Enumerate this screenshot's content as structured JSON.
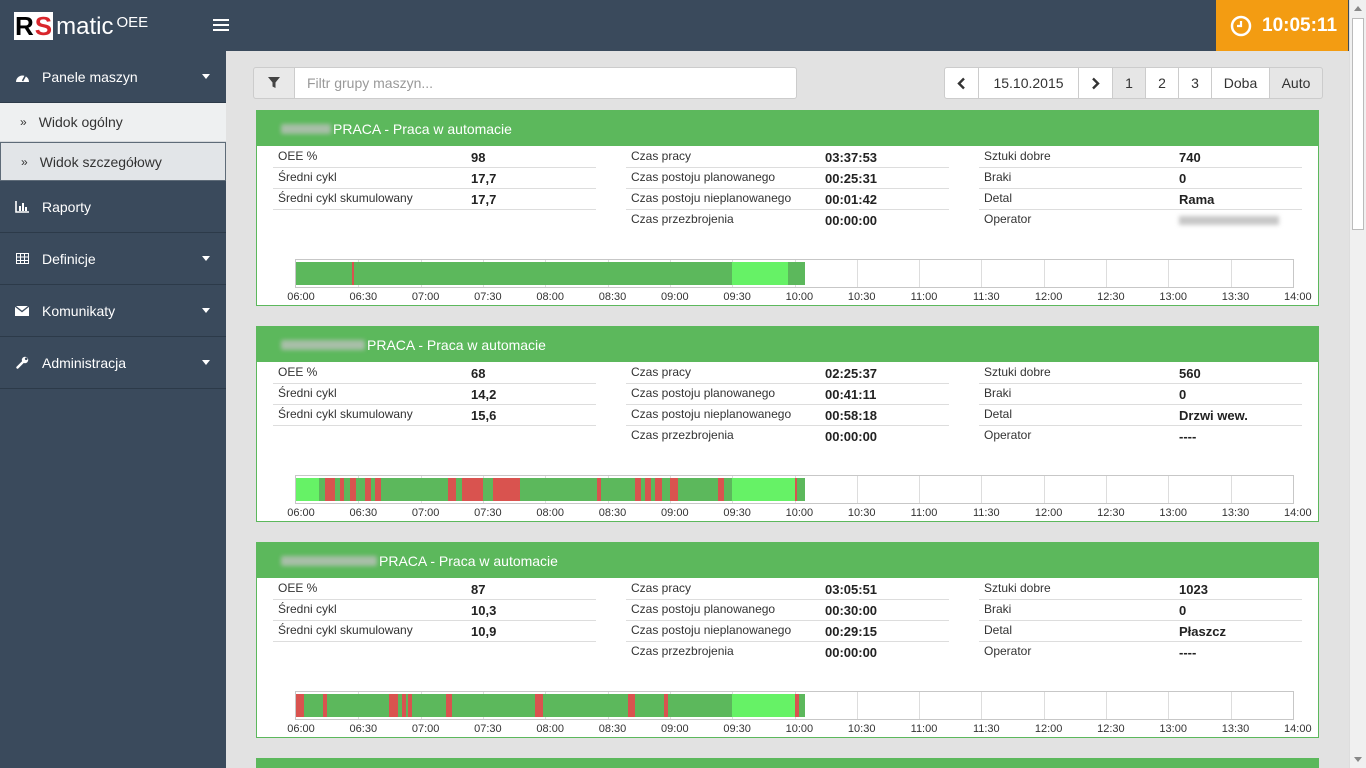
{
  "app": {
    "logo_r": "R",
    "logo_s": "S",
    "logo_rest": "matic",
    "logo_suffix": "OEE",
    "clock": "10:05:11"
  },
  "sidebar": {
    "items": [
      {
        "label": "Panele maszyn",
        "icon": "dashboard-icon",
        "expanded": true,
        "children": [
          {
            "label": "Widok ogólny",
            "active": false
          },
          {
            "label": "Widok szczegółowy",
            "active": true
          }
        ]
      },
      {
        "label": "Raporty",
        "icon": "bar-chart-icon"
      },
      {
        "label": "Definicje",
        "icon": "table-icon"
      },
      {
        "label": "Komunikaty",
        "icon": "envelope-icon"
      },
      {
        "label": "Administracja",
        "icon": "wrench-icon"
      }
    ]
  },
  "toolbar": {
    "filter_placeholder": "Filtr grupy maszyn...",
    "date": "15.10.2015",
    "pages": [
      "1",
      "2",
      "3"
    ],
    "active_page": "1",
    "doba": "Doba",
    "auto": "Auto"
  },
  "labels": {
    "oee": "OEE %",
    "avg_cycle": "Średni cykl",
    "avg_cycle_cum": "Średni cykl skumulowany",
    "work_time": "Czas pracy",
    "planned_stop": "Czas postoju planowanego",
    "unplanned_stop": "Czas postoju nieplanowanego",
    "changeover": "Czas przezbrojenia",
    "good_parts": "Sztuki dobre",
    "rejects": "Braki",
    "detail": "Detal",
    "operator": "Operator"
  },
  "time_ticks": [
    "06:00",
    "06:30",
    "07:00",
    "07:30",
    "08:00",
    "08:30",
    "09:00",
    "09:30",
    "10:00",
    "10:30",
    "11:00",
    "11:30",
    "12:00",
    "12:30",
    "13:00",
    "13:30",
    "14:00"
  ],
  "colors": {
    "run": "#5cb85c",
    "stop": "#d9534f",
    "planned": "#66f266",
    "header": "#5cb85c",
    "clock": "#f39c12"
  },
  "machines": [
    {
      "status": "PRACA - Praca w automacie",
      "oee": "98",
      "avg_cycle": "17,7",
      "avg_cycle_cum": "17,7",
      "work_time": "03:37:53",
      "planned_stop": "00:25:31",
      "unplanned_stop": "00:01:42",
      "changeover": "00:00:00",
      "good_parts": "740",
      "rejects": "0",
      "detail": "Rama",
      "operator": "",
      "timeline": [
        {
          "from": "06:00",
          "to": "06:27",
          "state": "run"
        },
        {
          "from": "06:27",
          "to": "06:28",
          "state": "stop"
        },
        {
          "from": "06:28",
          "to": "09:30",
          "state": "run"
        },
        {
          "from": "09:30",
          "to": "09:57",
          "state": "planned"
        },
        {
          "from": "09:57",
          "to": "10:05",
          "state": "run"
        }
      ]
    },
    {
      "status": "PRACA - Praca w automacie",
      "oee": "68",
      "avg_cycle": "14,2",
      "avg_cycle_cum": "15,6",
      "work_time": "02:25:37",
      "planned_stop": "00:41:11",
      "unplanned_stop": "00:58:18",
      "changeover": "00:00:00",
      "good_parts": "560",
      "rejects": "0",
      "detail": "Drzwi wew.",
      "operator": "----",
      "timeline": [
        {
          "from": "06:00",
          "to": "06:11",
          "state": "planned"
        },
        {
          "from": "06:11",
          "to": "06:14",
          "state": "run"
        },
        {
          "from": "06:14",
          "to": "06:19",
          "state": "stop"
        },
        {
          "from": "06:19",
          "to": "06:21",
          "state": "run"
        },
        {
          "from": "06:21",
          "to": "06:23",
          "state": "stop"
        },
        {
          "from": "06:23",
          "to": "06:26",
          "state": "run"
        },
        {
          "from": "06:26",
          "to": "06:29",
          "state": "stop"
        },
        {
          "from": "06:29",
          "to": "06:33",
          "state": "run"
        },
        {
          "from": "06:33",
          "to": "06:36",
          "state": "stop"
        },
        {
          "from": "06:36",
          "to": "06:38",
          "state": "run"
        },
        {
          "from": "06:38",
          "to": "06:41",
          "state": "stop"
        },
        {
          "from": "06:41",
          "to": "07:13",
          "state": "run"
        },
        {
          "from": "07:13",
          "to": "07:17",
          "state": "stop"
        },
        {
          "from": "07:17",
          "to": "07:20",
          "state": "run"
        },
        {
          "from": "07:20",
          "to": "07:30",
          "state": "stop"
        },
        {
          "from": "07:30",
          "to": "07:35",
          "state": "run"
        },
        {
          "from": "07:35",
          "to": "07:48",
          "state": "stop"
        },
        {
          "from": "07:48",
          "to": "08:25",
          "state": "run"
        },
        {
          "from": "08:25",
          "to": "08:27",
          "state": "stop"
        },
        {
          "from": "08:27",
          "to": "08:43",
          "state": "run"
        },
        {
          "from": "08:43",
          "to": "08:46",
          "state": "stop"
        },
        {
          "from": "08:46",
          "to": "08:48",
          "state": "run"
        },
        {
          "from": "08:48",
          "to": "08:51",
          "state": "stop"
        },
        {
          "from": "08:51",
          "to": "08:53",
          "state": "run"
        },
        {
          "from": "08:53",
          "to": "08:56",
          "state": "stop"
        },
        {
          "from": "08:56",
          "to": "09:00",
          "state": "run"
        },
        {
          "from": "09:00",
          "to": "09:04",
          "state": "stop"
        },
        {
          "from": "09:04",
          "to": "09:23",
          "state": "run"
        },
        {
          "from": "09:23",
          "to": "09:26",
          "state": "stop"
        },
        {
          "from": "09:26",
          "to": "09:30",
          "state": "run"
        },
        {
          "from": "09:30",
          "to": "10:00",
          "state": "planned"
        },
        {
          "from": "10:00",
          "to": "10:01",
          "state": "stop"
        },
        {
          "from": "10:01",
          "to": "10:05",
          "state": "run"
        }
      ]
    },
    {
      "status": "PRACA - Praca w automacie",
      "oee": "87",
      "avg_cycle": "10,3",
      "avg_cycle_cum": "10,9",
      "work_time": "03:05:51",
      "planned_stop": "00:30:00",
      "unplanned_stop": "00:29:15",
      "changeover": "00:00:00",
      "good_parts": "1023",
      "rejects": "0",
      "detail": "Płaszcz",
      "operator": "----",
      "timeline": [
        {
          "from": "06:00",
          "to": "06:04",
          "state": "stop"
        },
        {
          "from": "06:04",
          "to": "06:13",
          "state": "run"
        },
        {
          "from": "06:13",
          "to": "06:15",
          "state": "stop"
        },
        {
          "from": "06:15",
          "to": "06:45",
          "state": "run"
        },
        {
          "from": "06:45",
          "to": "06:49",
          "state": "stop"
        },
        {
          "from": "06:49",
          "to": "06:51",
          "state": "run"
        },
        {
          "from": "06:51",
          "to": "06:53",
          "state": "stop"
        },
        {
          "from": "06:53",
          "to": "06:54",
          "state": "run"
        },
        {
          "from": "06:54",
          "to": "06:56",
          "state": "stop"
        },
        {
          "from": "06:56",
          "to": "07:12",
          "state": "run"
        },
        {
          "from": "07:12",
          "to": "07:15",
          "state": "stop"
        },
        {
          "from": "07:15",
          "to": "07:55",
          "state": "run"
        },
        {
          "from": "07:55",
          "to": "07:59",
          "state": "stop"
        },
        {
          "from": "07:59",
          "to": "08:40",
          "state": "run"
        },
        {
          "from": "08:40",
          "to": "08:43",
          "state": "stop"
        },
        {
          "from": "08:43",
          "to": "08:57",
          "state": "run"
        },
        {
          "from": "08:57",
          "to": "08:59",
          "state": "stop"
        },
        {
          "from": "08:59",
          "to": "09:30",
          "state": "run"
        },
        {
          "from": "09:30",
          "to": "10:00",
          "state": "planned"
        },
        {
          "from": "10:00",
          "to": "10:02",
          "state": "stop"
        },
        {
          "from": "10:02",
          "to": "10:05",
          "state": "run"
        }
      ]
    }
  ]
}
